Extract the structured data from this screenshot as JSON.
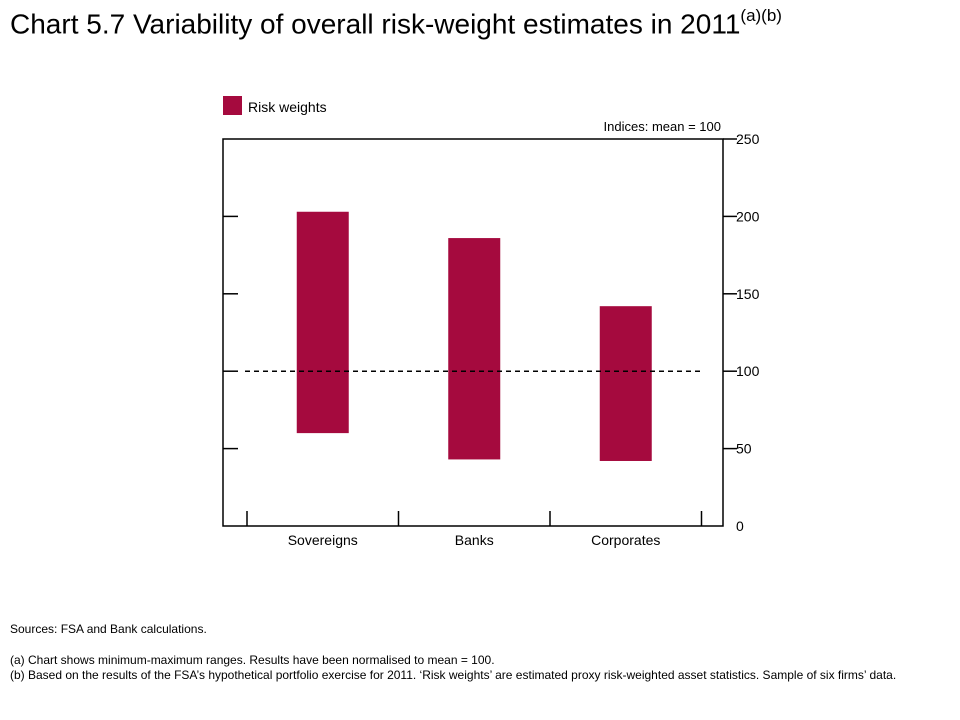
{
  "title": "Chart 5.7  Variability of overall risk-weight estimates in 2011",
  "title_superscript": "(a)(b)",
  "chart_data": {
    "type": "bar",
    "subtype": "floating-range",
    "categories": [
      "Sovereigns",
      "Banks",
      "Corporates"
    ],
    "series": [
      {
        "name": "Risk weights",
        "min": [
          60,
          43,
          42
        ],
        "max": [
          203,
          186,
          142
        ]
      }
    ],
    "reference_line": {
      "value": 100,
      "style": "dashed"
    },
    "axis_note": "Indices:  mean = 100",
    "ylim": [
      0,
      250
    ],
    "yticks": [
      0,
      50,
      100,
      150,
      200,
      250
    ],
    "y_axis_side": "right",
    "legend_position": "top-left",
    "colors": {
      "bar": "#a50a3e",
      "axis": "#000000"
    }
  },
  "footer": {
    "sources": "Sources: FSA and Bank calculations.",
    "note_a": "(a) Chart shows minimum-maximum  ranges. Results have been normalised to mean = 100.",
    "note_b": "(b) Based on the results of the FSA’s hypothetical portfolio exercise for 2011. ‘Risk weights’ are estimated proxy risk-weighted asset statistics. Sample of six firms’ data."
  }
}
